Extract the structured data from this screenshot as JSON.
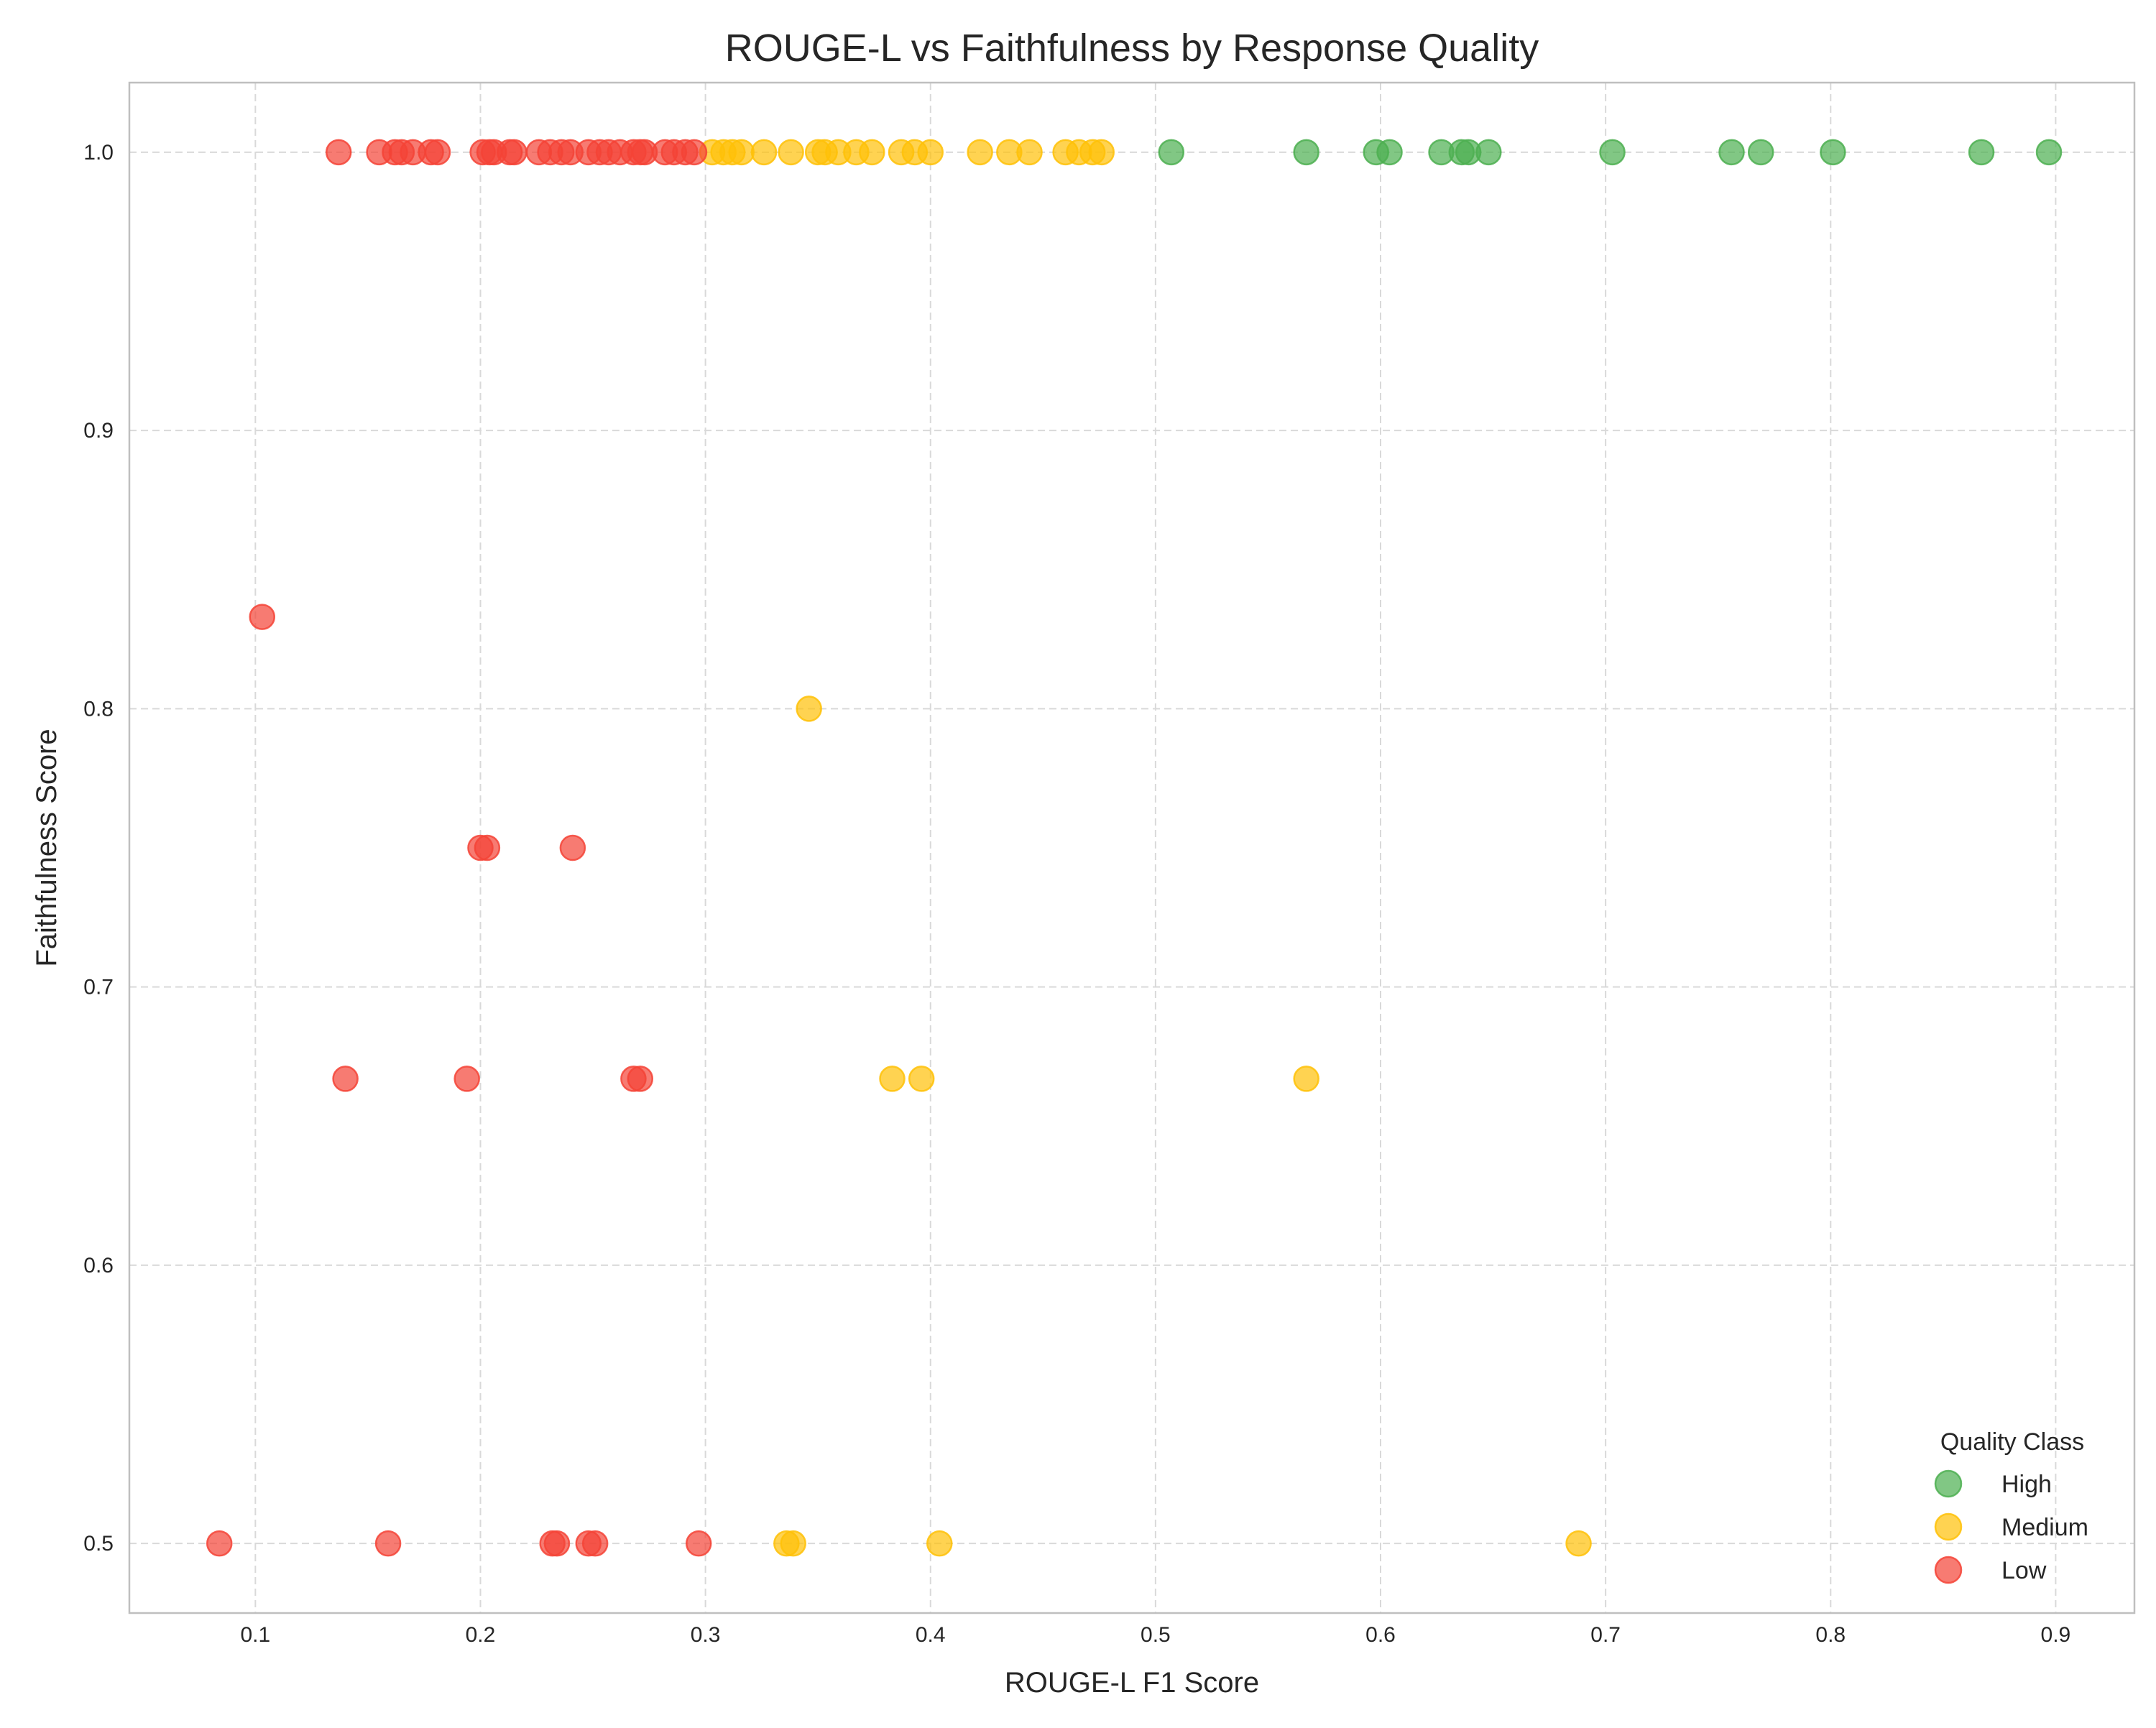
{
  "chart_data": {
    "type": "scatter",
    "title": "ROUGE-L vs Faithfulness by Response Quality",
    "xlabel": "ROUGE-L F1 Score",
    "ylabel": "Faithfulness Score",
    "xlim": [
      0.044,
      0.935
    ],
    "ylim": [
      0.475,
      1.025
    ],
    "xticks": [
      0.1,
      0.2,
      0.3,
      0.4,
      0.5,
      0.6,
      0.7,
      0.8,
      0.9
    ],
    "xtick_labels": [
      "0.1",
      "0.2",
      "0.3",
      "0.4",
      "0.5",
      "0.6",
      "0.7",
      "0.8",
      "0.9"
    ],
    "yticks": [
      0.5,
      0.6,
      0.7,
      0.8,
      0.9,
      1.0
    ],
    "ytick_labels": [
      "0.5",
      "0.6",
      "0.7",
      "0.8",
      "0.9",
      "1.0"
    ],
    "grid": true,
    "legend": {
      "title": "Quality Class",
      "placement": "lower-right"
    },
    "series": [
      {
        "name": "High",
        "color": "#4CAF50",
        "points": [
          [
            0.507,
            1.0
          ],
          [
            0.567,
            1.0
          ],
          [
            0.598,
            1.0
          ],
          [
            0.604,
            1.0
          ],
          [
            0.627,
            1.0
          ],
          [
            0.636,
            1.0
          ],
          [
            0.639,
            1.0
          ],
          [
            0.648,
            1.0
          ],
          [
            0.703,
            1.0
          ],
          [
            0.756,
            1.0
          ],
          [
            0.769,
            1.0
          ],
          [
            0.801,
            1.0
          ],
          [
            0.867,
            1.0
          ],
          [
            0.897,
            1.0
          ]
        ]
      },
      {
        "name": "Medium",
        "color": "#FFC107",
        "points": [
          [
            0.303,
            1.0
          ],
          [
            0.308,
            1.0
          ],
          [
            0.312,
            1.0
          ],
          [
            0.316,
            1.0
          ],
          [
            0.326,
            1.0
          ],
          [
            0.338,
            1.0
          ],
          [
            0.35,
            1.0
          ],
          [
            0.353,
            1.0
          ],
          [
            0.359,
            1.0
          ],
          [
            0.367,
            1.0
          ],
          [
            0.374,
            1.0
          ],
          [
            0.387,
            1.0
          ],
          [
            0.393,
            1.0
          ],
          [
            0.4,
            1.0
          ],
          [
            0.422,
            1.0
          ],
          [
            0.435,
            1.0
          ],
          [
            0.444,
            1.0
          ],
          [
            0.46,
            1.0
          ],
          [
            0.466,
            1.0
          ],
          [
            0.472,
            1.0
          ],
          [
            0.476,
            1.0
          ],
          [
            0.346,
            0.8
          ],
          [
            0.383,
            0.667
          ],
          [
            0.396,
            0.667
          ],
          [
            0.567,
            0.667
          ],
          [
            0.336,
            0.5
          ],
          [
            0.339,
            0.5
          ],
          [
            0.404,
            0.5
          ],
          [
            0.688,
            0.5
          ]
        ]
      },
      {
        "name": "Low",
        "color": "#F44336",
        "points": [
          [
            0.137,
            1.0
          ],
          [
            0.155,
            1.0
          ],
          [
            0.162,
            1.0
          ],
          [
            0.165,
            1.0
          ],
          [
            0.17,
            1.0
          ],
          [
            0.178,
            1.0
          ],
          [
            0.181,
            1.0
          ],
          [
            0.201,
            1.0
          ],
          [
            0.204,
            1.0
          ],
          [
            0.206,
            1.0
          ],
          [
            0.213,
            1.0
          ],
          [
            0.215,
            1.0
          ],
          [
            0.226,
            1.0
          ],
          [
            0.231,
            1.0
          ],
          [
            0.236,
            1.0
          ],
          [
            0.24,
            1.0
          ],
          [
            0.248,
            1.0
          ],
          [
            0.253,
            1.0
          ],
          [
            0.257,
            1.0
          ],
          [
            0.262,
            1.0
          ],
          [
            0.268,
            1.0
          ],
          [
            0.271,
            1.0
          ],
          [
            0.273,
            1.0
          ],
          [
            0.282,
            1.0
          ],
          [
            0.286,
            1.0
          ],
          [
            0.291,
            1.0
          ],
          [
            0.295,
            1.0
          ],
          [
            0.103,
            0.833
          ],
          [
            0.2,
            0.75
          ],
          [
            0.203,
            0.75
          ],
          [
            0.241,
            0.75
          ],
          [
            0.14,
            0.667
          ],
          [
            0.194,
            0.667
          ],
          [
            0.268,
            0.667
          ],
          [
            0.271,
            0.667
          ],
          [
            0.084,
            0.5
          ],
          [
            0.159,
            0.5
          ],
          [
            0.232,
            0.5
          ],
          [
            0.234,
            0.5
          ],
          [
            0.248,
            0.5
          ],
          [
            0.251,
            0.5
          ],
          [
            0.297,
            0.5
          ]
        ]
      }
    ]
  }
}
